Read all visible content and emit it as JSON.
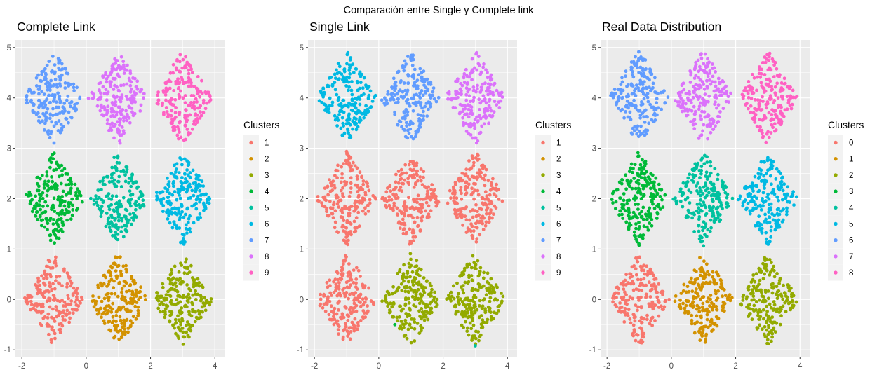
{
  "figure": {
    "title": "Comparación entre Single y Complete link"
  },
  "colors": {
    "palette": [
      "#F8766D",
      "#D39200",
      "#93AA00",
      "#00BA38",
      "#00C19F",
      "#00B9E3",
      "#619CFF",
      "#DB72FB",
      "#FF61C3"
    ],
    "panel_background": "#EBEBEB",
    "grid": "#FFFFFF"
  },
  "chart_data": [
    {
      "type": "scatter",
      "title": "Complete Link",
      "xlabel": "",
      "ylabel": "",
      "xlim": [
        -2.2,
        4.3
      ],
      "ylim": [
        -1.15,
        5.15
      ],
      "x_ticks": [
        "-2",
        "0",
        "2",
        "4"
      ],
      "y_ticks": [
        "-1",
        "0",
        "1",
        "2",
        "3",
        "4",
        "5"
      ],
      "grid": true,
      "legend_position": "right",
      "legend_title": "Clusters",
      "legend_labels": [
        "1",
        "2",
        "3",
        "4",
        "5",
        "6",
        "7",
        "8",
        "9"
      ],
      "groups": [
        {
          "label": "1",
          "center": [
            -1,
            0
          ],
          "points": 200
        },
        {
          "label": "2",
          "center": [
            1,
            0
          ],
          "points": 200
        },
        {
          "label": "3",
          "center": [
            3,
            0
          ],
          "points": 200
        },
        {
          "label": "4",
          "center": [
            -1,
            2
          ],
          "points": 200
        },
        {
          "label": "5",
          "center": [
            1,
            2
          ],
          "points": 200
        },
        {
          "label": "6",
          "center": [
            3,
            2
          ],
          "points": 200
        },
        {
          "label": "7",
          "center": [
            -1,
            4
          ],
          "points": 200
        },
        {
          "label": "8",
          "center": [
            1,
            4
          ],
          "points": 200
        },
        {
          "label": "9",
          "center": [
            3,
            4
          ],
          "points": 200
        }
      ]
    },
    {
      "type": "scatter",
      "title": "Single Link",
      "xlabel": "",
      "ylabel": "",
      "xlim": [
        -2.2,
        4.3
      ],
      "ylim": [
        -1.15,
        5.15
      ],
      "x_ticks": [
        "-2",
        "0",
        "2",
        "4"
      ],
      "y_ticks": [
        "-1",
        "0",
        "1",
        "2",
        "3",
        "4",
        "5"
      ],
      "grid": true,
      "legend_position": "right",
      "legend_title": "Clusters",
      "legend_labels": [
        "1",
        "2",
        "3",
        "4",
        "5",
        "6",
        "7",
        "8",
        "9"
      ],
      "groups": [
        {
          "label": "1",
          "center": [
            -1,
            0
          ],
          "points": 200
        },
        {
          "label": "3",
          "center": [
            1,
            0
          ],
          "points": 200
        },
        {
          "label": "3",
          "center": [
            3,
            0
          ],
          "points": 200
        },
        {
          "label": "1",
          "center": [
            -1,
            2
          ],
          "points": 200
        },
        {
          "label": "1",
          "center": [
            1,
            2
          ],
          "points": 200
        },
        {
          "label": "1",
          "center": [
            3,
            2
          ],
          "points": 200
        },
        {
          "label": "6",
          "center": [
            -1,
            4
          ],
          "points": 200
        },
        {
          "label": "7",
          "center": [
            1,
            4
          ],
          "points": 200
        },
        {
          "label": "8",
          "center": [
            3,
            4
          ],
          "points": 200
        }
      ],
      "outliers": [
        {
          "label": "4",
          "x": 0.5,
          "y": -0.5
        },
        {
          "label": "5",
          "x": 3.0,
          "y": -0.92
        }
      ]
    },
    {
      "type": "scatter",
      "title": "Real Data Distribution",
      "xlabel": "",
      "ylabel": "",
      "xlim": [
        -2.2,
        4.3
      ],
      "ylim": [
        -1.15,
        5.15
      ],
      "x_ticks": [
        "-2",
        "0",
        "2",
        "4"
      ],
      "y_ticks": [
        "-1",
        "0",
        "1",
        "2",
        "3",
        "4",
        "5"
      ],
      "grid": true,
      "legend_position": "right",
      "legend_title": "Clusters",
      "legend_labels": [
        "0",
        "1",
        "2",
        "3",
        "4",
        "5",
        "6",
        "7",
        "8"
      ],
      "groups": [
        {
          "label": "0",
          "center": [
            -1,
            0
          ],
          "points": 200
        },
        {
          "label": "1",
          "center": [
            1,
            0
          ],
          "points": 200
        },
        {
          "label": "2",
          "center": [
            3,
            0
          ],
          "points": 200
        },
        {
          "label": "3",
          "center": [
            -1,
            2
          ],
          "points": 200
        },
        {
          "label": "4",
          "center": [
            1,
            2
          ],
          "points": 200
        },
        {
          "label": "5",
          "center": [
            3,
            2
          ],
          "points": 200
        },
        {
          "label": "6",
          "center": [
            -1,
            4
          ],
          "points": 200
        },
        {
          "label": "7",
          "center": [
            1,
            4
          ],
          "points": 200
        },
        {
          "label": "8",
          "center": [
            3,
            4
          ],
          "points": 200
        }
      ]
    }
  ]
}
